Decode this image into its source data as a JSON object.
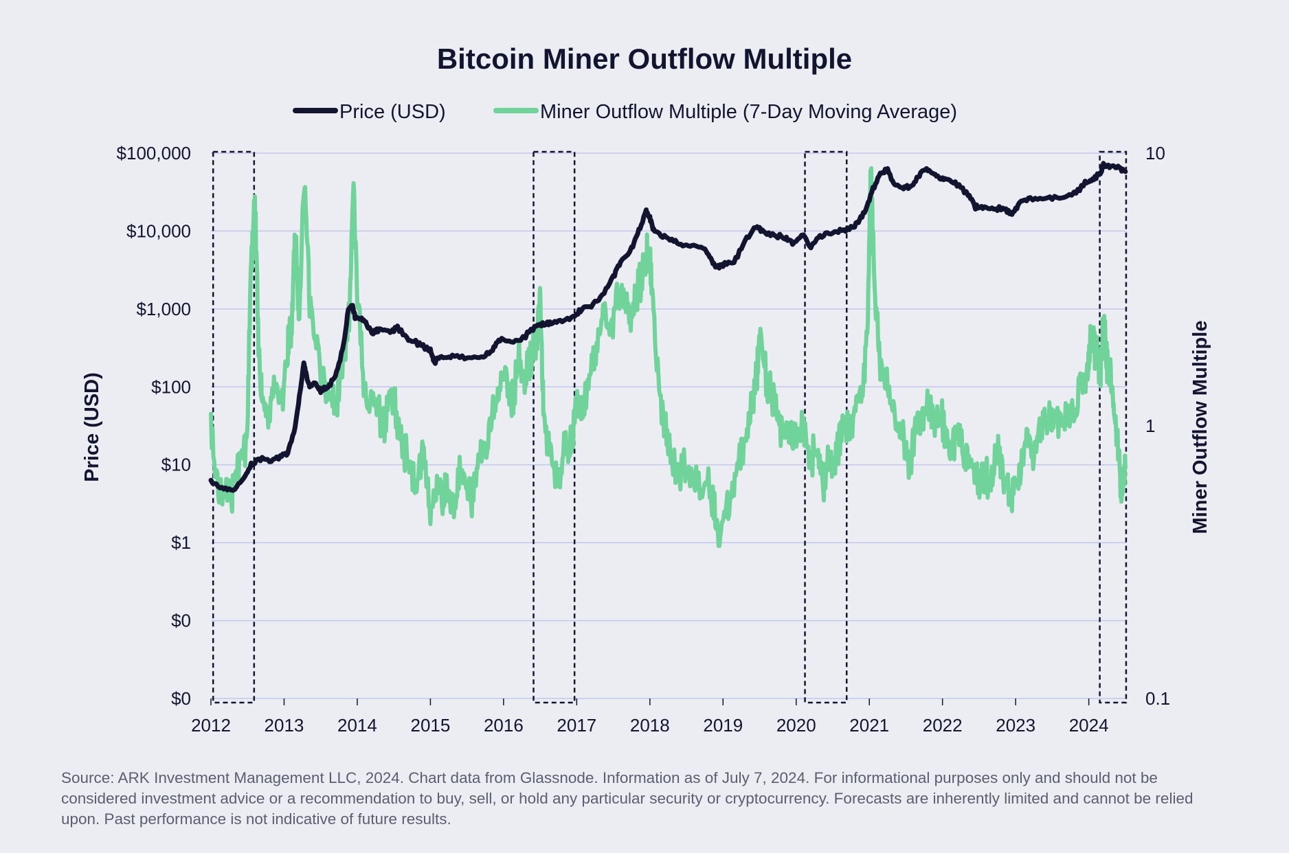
{
  "chart_data": {
    "type": "line",
    "title": "Bitcoin Miner Outflow Multiple",
    "legend": {
      "placement": "top-center",
      "entries": [
        {
          "label": "Price (USD)",
          "color": "#131530"
        },
        {
          "label": "Miner Outflow Multiple (7-Day Moving Average)",
          "color": "#6fd39a"
        }
      ]
    },
    "x_axis": {
      "label": "",
      "ticks": [
        "2012",
        "2013",
        "2014",
        "2015",
        "2016",
        "2017",
        "2018",
        "2019",
        "2020",
        "2021",
        "2022",
        "2023",
        "2024"
      ],
      "range": [
        2012.0,
        2024.52
      ]
    },
    "y_left": {
      "label": "Price (USD)",
      "scale": "log",
      "range": [
        0.01,
        100000
      ],
      "ticks": [
        {
          "value": 100000,
          "label": "$100,000"
        },
        {
          "value": 10000,
          "label": "$10,000"
        },
        {
          "value": 1000,
          "label": "$1,000"
        },
        {
          "value": 100,
          "label": "$100"
        },
        {
          "value": 10,
          "label": "$10"
        },
        {
          "value": 1,
          "label": "$1"
        },
        {
          "value": 0.1,
          "label": "$0"
        },
        {
          "value": 0.01,
          "label": "$0"
        }
      ]
    },
    "y_right": {
      "label": "Miner Outflow Multiple",
      "scale": "log",
      "range": [
        0.1,
        10
      ],
      "ticks": [
        {
          "value": 10,
          "label": "10"
        },
        {
          "value": 1,
          "label": "1"
        },
        {
          "value": 0.1,
          "label": "0.1"
        }
      ]
    },
    "grid": true,
    "highlight_periods": [
      [
        2012.03,
        2012.59
      ],
      [
        2016.41,
        2016.97
      ],
      [
        2020.12,
        2020.69
      ],
      [
        2024.15,
        2024.51
      ]
    ],
    "series": [
      {
        "name": "Price (USD)",
        "axis": "left",
        "color": "#131530",
        "x": [
          2012.0,
          2012.15,
          2012.3,
          2012.45,
          2012.55,
          2012.65,
          2012.8,
          2012.95,
          2013.05,
          2013.15,
          2013.22,
          2013.27,
          2013.3,
          2013.35,
          2013.42,
          2013.5,
          2013.6,
          2013.7,
          2013.8,
          2013.88,
          2013.93,
          2013.97,
          2014.02,
          2014.1,
          2014.2,
          2014.3,
          2014.45,
          2014.55,
          2014.7,
          2014.85,
          2015.0,
          2015.05,
          2015.15,
          2015.3,
          2015.5,
          2015.7,
          2015.85,
          2015.95,
          2016.1,
          2016.3,
          2016.45,
          2016.55,
          2016.65,
          2016.8,
          2016.95,
          2017.05,
          2017.2,
          2017.35,
          2017.5,
          2017.6,
          2017.75,
          2017.85,
          2017.95,
          2018.0,
          2018.05,
          2018.15,
          2018.3,
          2018.45,
          2018.6,
          2018.75,
          2018.85,
          2018.92,
          2019.0,
          2019.15,
          2019.3,
          2019.45,
          2019.55,
          2019.7,
          2019.85,
          2019.95,
          2020.1,
          2020.2,
          2020.3,
          2020.45,
          2020.6,
          2020.75,
          2020.85,
          2020.95,
          2021.05,
          2021.15,
          2021.25,
          2021.35,
          2021.45,
          2021.55,
          2021.65,
          2021.75,
          2021.85,
          2021.95,
          2022.05,
          2022.2,
          2022.35,
          2022.45,
          2022.55,
          2022.7,
          2022.85,
          2022.95,
          2023.05,
          2023.2,
          2023.4,
          2023.6,
          2023.8,
          2023.95,
          2024.05,
          2024.15,
          2024.2,
          2024.3,
          2024.4,
          2024.5
        ],
        "values": [
          6,
          5,
          4.8,
          6.5,
          10,
          12,
          11,
          13,
          14,
          30,
          90,
          200,
          150,
          100,
          110,
          90,
          100,
          130,
          300,
          1000,
          1100,
          800,
          750,
          700,
          500,
          550,
          500,
          600,
          400,
          350,
          300,
          200,
          250,
          250,
          230,
          240,
          300,
          400,
          380,
          450,
          600,
          650,
          650,
          700,
          800,
          950,
          1100,
          1500,
          2500,
          4000,
          6000,
          10000,
          18000,
          15000,
          10000,
          9000,
          7500,
          6500,
          6500,
          6000,
          4000,
          3500,
          3600,
          4000,
          7500,
          11000,
          10000,
          9000,
          8000,
          7200,
          9000,
          6000,
          8500,
          9500,
          10000,
          11000,
          13000,
          18000,
          35000,
          55000,
          60000,
          40000,
          35000,
          37000,
          48000,
          62000,
          57000,
          48000,
          45000,
          40000,
          30000,
          20000,
          21000,
          19000,
          19500,
          16500,
          22000,
          26000,
          27000,
          26000,
          30000,
          42000,
          44000,
          55000,
          70000,
          65000,
          68000,
          58000
        ]
      },
      {
        "name": "Miner Outflow Multiple (7-Day Moving Average)",
        "axis": "right",
        "color": "#6fd39a",
        "x": [
          2012.0,
          2012.1,
          2012.2,
          2012.3,
          2012.4,
          2012.5,
          2012.55,
          2012.6,
          2012.65,
          2012.7,
          2012.75,
          2012.85,
          2012.95,
          2013.05,
          2013.1,
          2013.15,
          2013.2,
          2013.28,
          2013.35,
          2013.45,
          2013.55,
          2013.65,
          2013.75,
          2013.85,
          2013.9,
          2013.95,
          2014.0,
          2014.1,
          2014.2,
          2014.35,
          2014.45,
          2014.55,
          2014.7,
          2014.8,
          2014.9,
          2015.0,
          2015.1,
          2015.2,
          2015.3,
          2015.4,
          2015.5,
          2015.6,
          2015.7,
          2015.8,
          2015.9,
          2016.0,
          2016.1,
          2016.2,
          2016.3,
          2016.4,
          2016.45,
          2016.5,
          2016.55,
          2016.65,
          2016.75,
          2016.85,
          2016.95,
          2017.05,
          2017.15,
          2017.25,
          2017.35,
          2017.45,
          2017.55,
          2017.65,
          2017.75,
          2017.85,
          2017.95,
          2018.0,
          2018.05,
          2018.15,
          2018.25,
          2018.4,
          2018.55,
          2018.7,
          2018.85,
          2018.95,
          2019.05,
          2019.15,
          2019.25,
          2019.35,
          2019.45,
          2019.5,
          2019.6,
          2019.7,
          2019.8,
          2019.9,
          2020.0,
          2020.1,
          2020.2,
          2020.3,
          2020.4,
          2020.5,
          2020.6,
          2020.7,
          2020.8,
          2020.9,
          2020.98,
          2021.02,
          2021.08,
          2021.15,
          2021.25,
          2021.35,
          2021.45,
          2021.55,
          2021.65,
          2021.75,
          2021.85,
          2021.95,
          2022.05,
          2022.15,
          2022.25,
          2022.35,
          2022.45,
          2022.55,
          2022.65,
          2022.75,
          2022.85,
          2022.95,
          2023.05,
          2023.15,
          2023.25,
          2023.35,
          2023.45,
          2023.55,
          2023.65,
          2023.75,
          2023.85,
          2023.95,
          2024.0,
          2024.05,
          2024.1,
          2024.15,
          2024.2,
          2024.25,
          2024.3,
          2024.35,
          2024.4,
          2024.45,
          2024.5
        ],
        "values": [
          0.9,
          0.6,
          0.55,
          0.6,
          0.7,
          1.0,
          4.0,
          7.0,
          2.0,
          1.3,
          1.1,
          1.4,
          1.2,
          1.8,
          2.5,
          5.0,
          2.5,
          8.0,
          3.0,
          1.8,
          1.5,
          1.2,
          1.4,
          2.0,
          3.0,
          8.0,
          3.0,
          1.3,
          1.2,
          1.0,
          1.3,
          1.1,
          0.7,
          0.6,
          0.8,
          0.5,
          0.55,
          0.6,
          0.5,
          0.7,
          0.55,
          0.6,
          0.8,
          0.9,
          1.3,
          1.5,
          1.2,
          1.7,
          1.6,
          1.8,
          2.0,
          3.0,
          1.1,
          0.7,
          0.65,
          0.8,
          1.0,
          1.2,
          1.4,
          1.8,
          2.5,
          2.2,
          3.0,
          2.8,
          2.5,
          3.5,
          4.0,
          4.5,
          2.5,
          1.2,
          0.8,
          0.7,
          0.65,
          0.6,
          0.55,
          0.4,
          0.5,
          0.6,
          0.8,
          1.0,
          1.5,
          2.2,
          1.5,
          1.2,
          1.0,
          0.9,
          1.0,
          0.9,
          0.8,
          0.7,
          0.65,
          0.75,
          0.9,
          1.0,
          1.1,
          1.3,
          2.5,
          9.5,
          2.5,
          1.8,
          1.4,
          1.1,
          0.9,
          0.7,
          1.0,
          1.2,
          1.0,
          1.1,
          0.9,
          0.85,
          0.9,
          0.75,
          0.7,
          0.6,
          0.65,
          0.75,
          0.7,
          0.5,
          0.7,
          0.9,
          0.8,
          0.95,
          1.1,
          1.05,
          1.0,
          1.1,
          1.25,
          1.5,
          1.7,
          2.2,
          1.8,
          1.6,
          2.3,
          1.8,
          1.5,
          1.1,
          0.8,
          0.6,
          0.7
        ]
      }
    ]
  },
  "source_note": "Source: ARK Investment Management LLC, 2024. Chart data from Glassnode. Information as of July 7, 2024. For informational purposes only and should not be considered investment advice or a recommendation to buy, sell, or hold any particular security or cryptocurrency. Forecasts are inherently limited and cannot be relied upon. Past performance is not indicative of future results."
}
